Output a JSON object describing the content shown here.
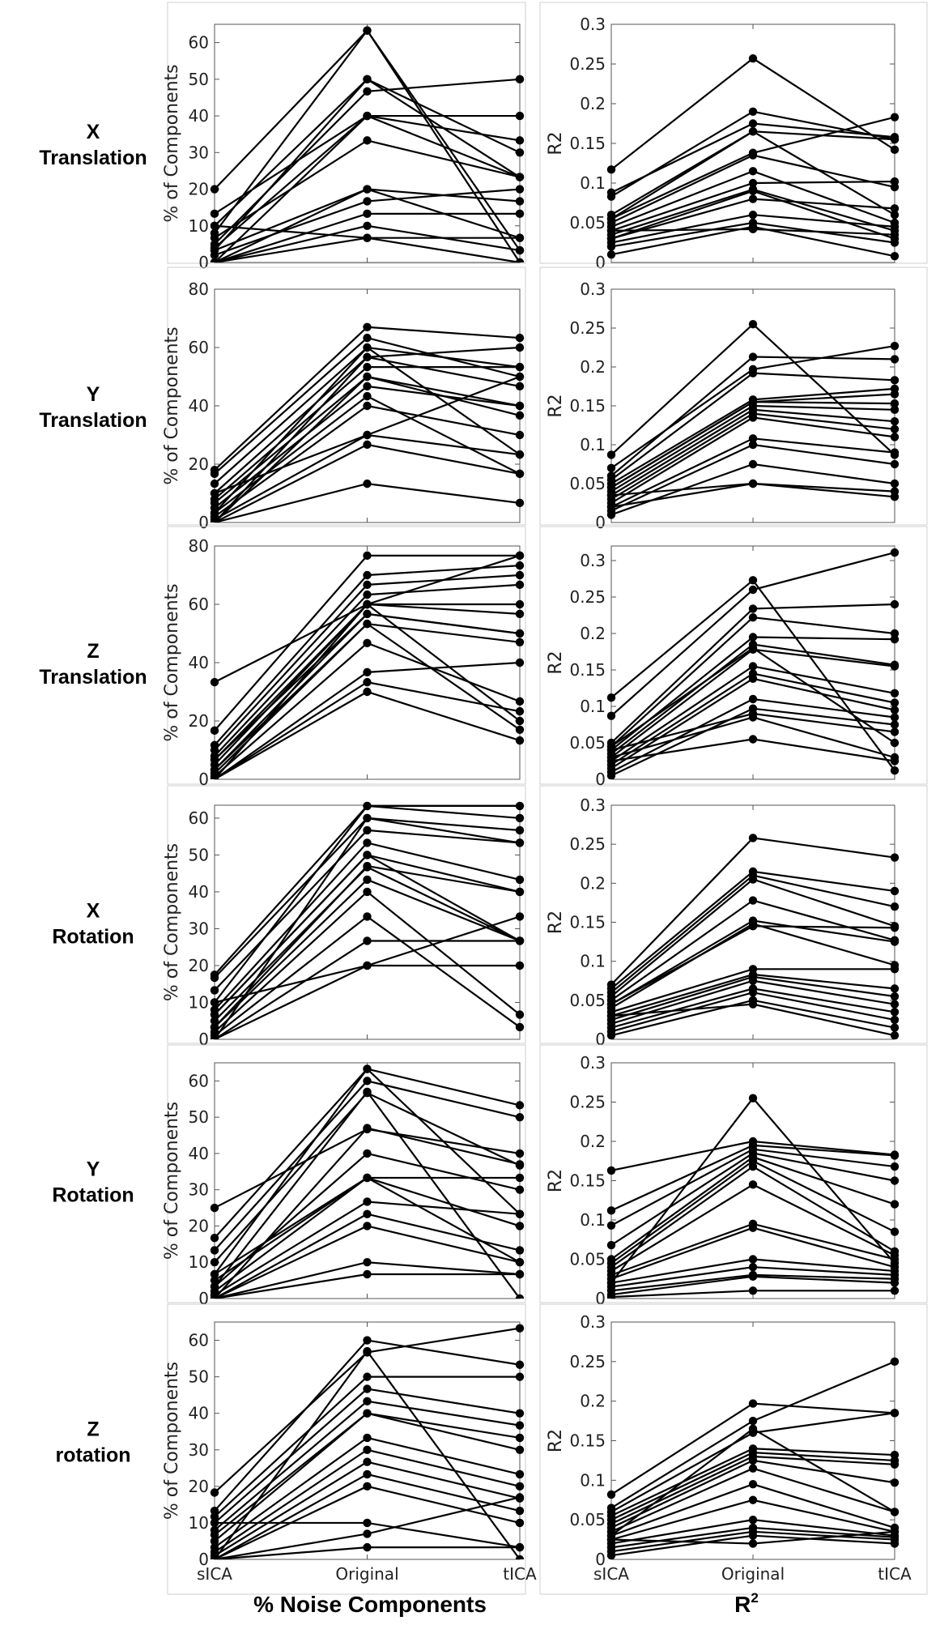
{
  "bottom_labels": {
    "left": "% Noise Components",
    "right_base": "R",
    "right_sup": "2"
  },
  "colors": {
    "line": "#000000",
    "point": "#000000",
    "axis": "#555555",
    "panel_border": "#cfcfcf"
  },
  "rows": [
    {
      "line1": "X",
      "line2": "Translation"
    },
    {
      "line1": "Y",
      "line2": "Translation"
    },
    {
      "line1": "Z",
      "line2": "Translation"
    },
    {
      "line1": "X",
      "line2": "Rotation"
    },
    {
      "line1": "Y",
      "line2": "Rotation"
    },
    {
      "line1": "Z",
      "line2": "rotation"
    }
  ],
  "chart_data": [
    {
      "type": "line",
      "row": 0,
      "col": 0,
      "xlabel": "",
      "ylabel": "% of Components",
      "categories": [
        "sICA",
        "Original",
        "tICA"
      ],
      "show_xticks": false,
      "ylim": [
        0,
        65
      ],
      "yticks": [
        0,
        10,
        20,
        30,
        40,
        50,
        60
      ],
      "lines": [
        [
          20,
          63.3,
          0
        ],
        [
          13.3,
          40,
          33.3
        ],
        [
          10,
          50,
          23.3
        ],
        [
          8,
          63.3,
          3.3
        ],
        [
          6.7,
          33.3,
          23.3
        ],
        [
          5,
          46.7,
          50
        ],
        [
          4,
          40,
          40
        ],
        [
          3.3,
          20,
          16.7
        ],
        [
          2,
          16.7,
          20
        ],
        [
          0,
          13.3,
          13.3
        ],
        [
          0,
          20,
          6.7
        ],
        [
          0,
          10,
          3.3
        ],
        [
          0,
          6.7,
          0
        ],
        [
          10,
          6.7,
          6.7
        ],
        [
          3.3,
          50,
          30
        ],
        [
          0,
          40,
          23.3
        ]
      ]
    },
    {
      "type": "line",
      "row": 0,
      "col": 1,
      "xlabel": "",
      "ylabel": "R2",
      "categories": [
        "sICA",
        "Original",
        "tICA"
      ],
      "show_xticks": false,
      "ylim": [
        0,
        0.3
      ],
      "yticks": [
        0,
        0.05,
        0.1,
        0.15,
        0.2,
        0.25,
        0.3
      ],
      "lines": [
        [
          0.117,
          0.257,
          0.142
        ],
        [
          0.088,
          0.175,
          0.158
        ],
        [
          0.083,
          0.19,
          0.155
        ],
        [
          0.06,
          0.165,
          0.06
        ],
        [
          0.055,
          0.138,
          0.183
        ],
        [
          0.05,
          0.135,
          0.095
        ],
        [
          0.045,
          0.115,
          0.05
        ],
        [
          0.04,
          0.1,
          0.102
        ],
        [
          0.035,
          0.092,
          0.04
        ],
        [
          0.03,
          0.09,
          0.03
        ],
        [
          0.03,
          0.08,
          0.068
        ],
        [
          0.025,
          0.06,
          0.045
        ],
        [
          0.02,
          0.05,
          0.025
        ],
        [
          0.01,
          0.045,
          0.008
        ],
        [
          0.04,
          0.042,
          0.035
        ],
        [
          0.055,
          0.165,
          0.155
        ]
      ]
    },
    {
      "type": "line",
      "row": 1,
      "col": 0,
      "xlabel": "",
      "ylabel": "% of Components",
      "categories": [
        "sICA",
        "Original",
        "tICA"
      ],
      "show_xticks": false,
      "ylim": [
        0,
        80
      ],
      "yticks": [
        0,
        20,
        40,
        60,
        80
      ],
      "lines": [
        [
          18,
          67,
          63.3
        ],
        [
          16.7,
          63.3,
          50
        ],
        [
          13.3,
          60,
          53.3
        ],
        [
          10,
          56.7,
          46.7
        ],
        [
          8,
          53.3,
          53.3
        ],
        [
          6.7,
          50,
          36.7
        ],
        [
          5,
          46.7,
          40
        ],
        [
          3.3,
          43.3,
          16.7
        ],
        [
          2,
          40,
          30
        ],
        [
          1,
          30,
          23.3
        ],
        [
          0,
          26.7,
          16.7
        ],
        [
          0,
          13.3,
          6.7
        ],
        [
          0,
          56.7,
          60
        ],
        [
          10,
          30,
          50
        ],
        [
          0,
          50,
          40
        ],
        [
          3.3,
          60,
          23.3
        ]
      ]
    },
    {
      "type": "line",
      "row": 1,
      "col": 1,
      "xlabel": "",
      "ylabel": "R2",
      "categories": [
        "sICA",
        "Original",
        "tICA"
      ],
      "show_xticks": false,
      "ylim": [
        0,
        0.3
      ],
      "yticks": [
        0,
        0.05,
        0.1,
        0.15,
        0.2,
        0.25,
        0.3
      ],
      "lines": [
        [
          0.087,
          0.255,
          0.087
        ],
        [
          0.07,
          0.197,
          0.227
        ],
        [
          0.06,
          0.213,
          0.21
        ],
        [
          0.055,
          0.192,
          0.183
        ],
        [
          0.05,
          0.158,
          0.172
        ],
        [
          0.045,
          0.155,
          0.153
        ],
        [
          0.04,
          0.15,
          0.145
        ],
        [
          0.035,
          0.145,
          0.13
        ],
        [
          0.03,
          0.14,
          0.12
        ],
        [
          0.025,
          0.135,
          0.11
        ],
        [
          0.02,
          0.108,
          0.09
        ],
        [
          0.015,
          0.1,
          0.075
        ],
        [
          0.01,
          0.075,
          0.05
        ],
        [
          0.035,
          0.05,
          0.04
        ],
        [
          0.02,
          0.05,
          0.033
        ],
        [
          0.045,
          0.155,
          0.165
        ]
      ]
    },
    {
      "type": "line",
      "row": 2,
      "col": 0,
      "xlabel": "",
      "ylabel": "% of Components",
      "categories": [
        "sICA",
        "Original",
        "tICA"
      ],
      "show_xticks": false,
      "ylim": [
        0,
        80
      ],
      "yticks": [
        0,
        20,
        40,
        60,
        80
      ],
      "lines": [
        [
          33.3,
          60,
          76.7
        ],
        [
          16.7,
          76.7,
          76.7
        ],
        [
          11.7,
          70,
          73.3
        ],
        [
          10,
          66.7,
          70
        ],
        [
          8,
          63.3,
          66.7
        ],
        [
          6.7,
          60,
          60
        ],
        [
          5,
          60,
          56.7
        ],
        [
          3.3,
          56.7,
          50
        ],
        [
          2,
          53.3,
          47
        ],
        [
          1,
          46.7,
          26.7
        ],
        [
          0,
          36.7,
          40
        ],
        [
          0,
          33.3,
          23.3
        ],
        [
          0,
          30,
          13.3
        ],
        [
          0,
          60,
          20
        ],
        [
          3.3,
          53.3,
          17
        ],
        [
          6.7,
          56.7,
          50
        ]
      ]
    },
    {
      "type": "line",
      "row": 2,
      "col": 1,
      "xlabel": "",
      "ylabel": "R2",
      "categories": [
        "sICA",
        "Original",
        "tICA"
      ],
      "show_xticks": false,
      "ylim": [
        0,
        0.32
      ],
      "yticks": [
        0,
        0.05,
        0.1,
        0.15,
        0.2,
        0.25,
        0.3
      ],
      "lines": [
        [
          0.112,
          0.273,
          0.012
        ],
        [
          0.087,
          0.26,
          0.311
        ],
        [
          0.05,
          0.234,
          0.24
        ],
        [
          0.045,
          0.222,
          0.2
        ],
        [
          0.04,
          0.195,
          0.192
        ],
        [
          0.035,
          0.185,
          0.157
        ],
        [
          0.03,
          0.178,
          0.155
        ],
        [
          0.025,
          0.155,
          0.118
        ],
        [
          0.02,
          0.145,
          0.105
        ],
        [
          0.015,
          0.138,
          0.095
        ],
        [
          0.01,
          0.11,
          0.085
        ],
        [
          0.005,
          0.097,
          0.075
        ],
        [
          0.04,
          0.09,
          0.065
        ],
        [
          0.03,
          0.085,
          0.03
        ],
        [
          0.025,
          0.055,
          0.025
        ],
        [
          0.045,
          0.18,
          0.05
        ]
      ]
    },
    {
      "type": "line",
      "row": 3,
      "col": 0,
      "xlabel": "",
      "ylabel": "% of Components",
      "categories": [
        "sICA",
        "Original",
        "tICA"
      ],
      "show_xticks": false,
      "ylim": [
        0,
        63.5
      ],
      "yticks": [
        0,
        10,
        20,
        30,
        40,
        50,
        60
      ],
      "lines": [
        [
          17.5,
          63.3,
          63.3
        ],
        [
          16.7,
          60,
          56.7
        ],
        [
          13.3,
          56.7,
          53.3
        ],
        [
          10,
          63.3,
          60
        ],
        [
          8,
          53.3,
          43.3
        ],
        [
          6.7,
          50,
          40
        ],
        [
          5,
          46.7,
          26.7
        ],
        [
          3.3,
          43.3,
          26.7
        ],
        [
          2,
          40,
          6.7
        ],
        [
          1,
          33.3,
          3.3
        ],
        [
          0,
          26.7,
          26.7
        ],
        [
          0,
          20,
          33.3
        ],
        [
          10,
          20,
          20
        ],
        [
          0,
          60,
          53.3
        ],
        [
          3.3,
          47,
          40
        ],
        [
          6.7,
          50,
          26.7
        ]
      ]
    },
    {
      "type": "line",
      "row": 3,
      "col": 1,
      "xlabel": "",
      "ylabel": "R2",
      "categories": [
        "sICA",
        "Original",
        "tICA"
      ],
      "show_xticks": false,
      "ylim": [
        0,
        0.3
      ],
      "yticks": [
        0,
        0.05,
        0.1,
        0.15,
        0.2,
        0.25,
        0.3
      ],
      "lines": [
        [
          0.07,
          0.258,
          0.233
        ],
        [
          0.065,
          0.215,
          0.19
        ],
        [
          0.06,
          0.21,
          0.17
        ],
        [
          0.055,
          0.205,
          0.145
        ],
        [
          0.05,
          0.178,
          0.127
        ],
        [
          0.045,
          0.152,
          0.125
        ],
        [
          0.04,
          0.148,
          0.095
        ],
        [
          0.035,
          0.09,
          0.09
        ],
        [
          0.03,
          0.083,
          0.065
        ],
        [
          0.025,
          0.08,
          0.055
        ],
        [
          0.02,
          0.075,
          0.045
        ],
        [
          0.015,
          0.065,
          0.035
        ],
        [
          0.01,
          0.06,
          0.025
        ],
        [
          0.005,
          0.05,
          0.015
        ],
        [
          0.03,
          0.045,
          0.005
        ],
        [
          0.045,
          0.145,
          0.143
        ]
      ]
    },
    {
      "type": "line",
      "row": 4,
      "col": 0,
      "xlabel": "",
      "ylabel": "% of Components",
      "categories": [
        "sICA",
        "Original",
        "tICA"
      ],
      "show_xticks": false,
      "ylim": [
        0,
        65
      ],
      "yticks": [
        0,
        10,
        20,
        30,
        40,
        50,
        60
      ],
      "lines": [
        [
          25,
          46.7,
          40
        ],
        [
          16.7,
          63.3,
          53.3
        ],
        [
          13.3,
          60,
          50
        ],
        [
          10,
          56.7,
          36.7
        ],
        [
          6.7,
          63.3,
          23.3
        ],
        [
          5,
          33.3,
          33.3
        ],
        [
          3.3,
          40,
          30
        ],
        [
          2,
          33.3,
          20
        ],
        [
          1,
          26.7,
          23.3
        ],
        [
          0,
          23.3,
          13.3
        ],
        [
          0,
          20,
          10
        ],
        [
          0,
          10,
          6.7
        ],
        [
          0,
          6.7,
          6.7
        ],
        [
          3.3,
          57,
          0
        ],
        [
          0,
          47,
          37
        ],
        [
          6.7,
          33.3,
          10
        ]
      ]
    },
    {
      "type": "line",
      "row": 4,
      "col": 1,
      "xlabel": "",
      "ylabel": "R2",
      "categories": [
        "sICA",
        "Original",
        "tICA"
      ],
      "show_xticks": false,
      "ylim": [
        0,
        0.3
      ],
      "yticks": [
        0,
        0.05,
        0.1,
        0.15,
        0.2,
        0.25,
        0.3
      ],
      "lines": [
        [
          0.163,
          0.2,
          0.183
        ],
        [
          0.112,
          0.195,
          0.182
        ],
        [
          0.093,
          0.19,
          0.168
        ],
        [
          0.068,
          0.185,
          0.15
        ],
        [
          0.05,
          0.18,
          0.12
        ],
        [
          0.045,
          0.175,
          0.085
        ],
        [
          0.04,
          0.168,
          0.06
        ],
        [
          0.035,
          0.145,
          0.055
        ],
        [
          0.03,
          0.095,
          0.05
        ],
        [
          0.025,
          0.09,
          0.04
        ],
        [
          0.02,
          0.05,
          0.035
        ],
        [
          0.015,
          0.04,
          0.03
        ],
        [
          0.01,
          0.03,
          0.025
        ],
        [
          0.005,
          0.028,
          0.02
        ],
        [
          0.002,
          0.01,
          0.01
        ],
        [
          0.02,
          0.255,
          0.045
        ]
      ]
    },
    {
      "type": "line",
      "row": 5,
      "col": 0,
      "xlabel": "",
      "ylabel": "% of Components",
      "categories": [
        "sICA",
        "Original",
        "tICA"
      ],
      "show_xticks": true,
      "ylim": [
        0,
        65
      ],
      "yticks": [
        0,
        10,
        20,
        30,
        40,
        50,
        60
      ],
      "lines": [
        [
          18.3,
          56.7,
          63.3
        ],
        [
          13.3,
          60,
          53.3
        ],
        [
          11.7,
          50,
          50
        ],
        [
          10,
          46.7,
          40
        ],
        [
          8,
          43.3,
          36.7
        ],
        [
          6.7,
          40,
          33.3
        ],
        [
          5,
          40,
          30
        ],
        [
          3.3,
          33.3,
          23.3
        ],
        [
          2,
          30,
          20
        ],
        [
          1,
          26.7,
          16.7
        ],
        [
          0,
          23.3,
          13.3
        ],
        [
          0,
          20,
          10
        ],
        [
          10,
          10,
          3.3
        ],
        [
          0,
          3.3,
          3.3
        ],
        [
          0,
          7,
          17
        ],
        [
          0,
          57,
          0
        ]
      ]
    },
    {
      "type": "line",
      "row": 5,
      "col": 1,
      "xlabel": "",
      "ylabel": "R2",
      "categories": [
        "sICA",
        "Original",
        "tICA"
      ],
      "show_xticks": true,
      "ylim": [
        0,
        0.3
      ],
      "yticks": [
        0,
        0.05,
        0.1,
        0.15,
        0.2,
        0.25,
        0.3
      ],
      "lines": [
        [
          0.082,
          0.197,
          0.185
        ],
        [
          0.065,
          0.175,
          0.25
        ],
        [
          0.06,
          0.16,
          0.185
        ],
        [
          0.055,
          0.14,
          0.132
        ],
        [
          0.05,
          0.135,
          0.125
        ],
        [
          0.045,
          0.13,
          0.12
        ],
        [
          0.04,
          0.125,
          0.097
        ],
        [
          0.035,
          0.115,
          0.06
        ],
        [
          0.03,
          0.095,
          0.04
        ],
        [
          0.025,
          0.075,
          0.035
        ],
        [
          0.02,
          0.05,
          0.03
        ],
        [
          0.015,
          0.04,
          0.028
        ],
        [
          0.01,
          0.035,
          0.025
        ],
        [
          0.005,
          0.03,
          0.02
        ],
        [
          0.025,
          0.02,
          0.035
        ],
        [
          0.03,
          0.165,
          0.06
        ]
      ]
    }
  ]
}
